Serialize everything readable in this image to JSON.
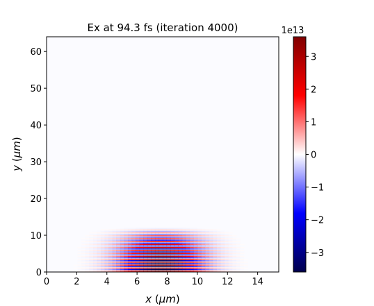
{
  "chart_data": {
    "type": "heatmap",
    "title": "Ex at 94.3 fs   (iteration 4000)",
    "xlabel": "x (μm)",
    "ylabel": "y (μm)",
    "xlim": [
      0,
      15.4
    ],
    "ylim": [
      0,
      64
    ],
    "x_ticks": [
      0,
      2,
      4,
      6,
      8,
      10,
      12,
      14
    ],
    "y_ticks": [
      0,
      10,
      20,
      30,
      40,
      50,
      60
    ],
    "colorbar": {
      "colormap": "seismic",
      "range": [
        -3.6,
        3.6
      ],
      "ticks": [
        -3,
        -2,
        -1,
        0,
        1,
        2,
        3
      ],
      "tick_labels": [
        "−3",
        "−2",
        "−1",
        "0",
        "1",
        "2",
        "3"
      ],
      "offset_label": "1e13"
    },
    "field": {
      "description_free": true,
      "envelope_center_x": 7.6,
      "envelope_width_x": 2.6,
      "envelope_extent_y": 12,
      "oscillation_period_y": 0.8,
      "peak_amplitude": 3.6
    }
  },
  "colors": {
    "background": "#fbfbff",
    "neg_max": "#00004c",
    "neg_mid": "#0000ff",
    "zero": "#ffffff",
    "pos_mid": "#ff0000",
    "pos_max": "#800000"
  }
}
